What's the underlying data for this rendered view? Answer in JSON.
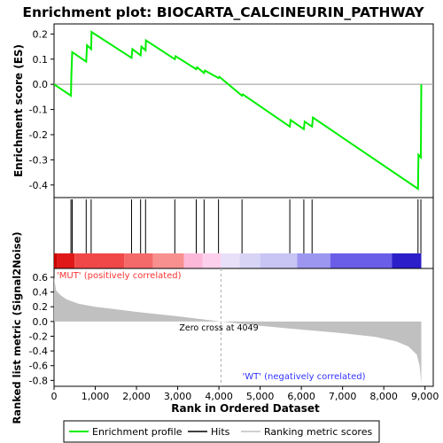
{
  "chart_data": {
    "type": "line",
    "title": "Enrichment plot: BIOCARTA_CALCINEURIN_PATHWAY",
    "xlabel": "Rank in Ordered Dataset",
    "xlim": [
      0,
      9200
    ],
    "x_ticks": [
      "0",
      "1,000",
      "2,000",
      "3,000",
      "4,000",
      "5,000",
      "6,000",
      "7,000",
      "8,000",
      "9,000"
    ],
    "x_tick_values": [
      0,
      1000,
      2000,
      3000,
      4000,
      5000,
      6000,
      7000,
      8000,
      9000
    ],
    "enrichment": {
      "ylabel": "Enrichment score (ES)",
      "ylim": [
        -0.45,
        0.24
      ],
      "y_ticks": [
        "0.2",
        "0.1",
        "0.0",
        "-0.1",
        "-0.2",
        "-0.3",
        "-0.4"
      ],
      "y_tick_values": [
        0.2,
        0.1,
        0.0,
        -0.1,
        -0.2,
        -0.3,
        -0.4
      ],
      "series_color": "#00ee00",
      "x": [
        0,
        410,
        420,
        440,
        780,
        800,
        900,
        910,
        1880,
        1900,
        2100,
        2120,
        2220,
        2230,
        2930,
        2950,
        3450,
        3470,
        3640,
        3660,
        3990,
        4010,
        4560,
        4580,
        5720,
        5740,
        6060,
        6080,
        6260,
        6280,
        8830,
        8840,
        8900,
        8910
      ],
      "y": [
        0.0,
        -0.045,
        0.03,
        0.128,
        0.09,
        0.155,
        0.14,
        0.208,
        0.105,
        0.14,
        0.115,
        0.15,
        0.135,
        0.175,
        0.1,
        0.112,
        0.06,
        0.068,
        0.045,
        0.055,
        0.025,
        0.03,
        -0.045,
        -0.04,
        -0.168,
        -0.142,
        -0.178,
        -0.148,
        -0.168,
        -0.132,
        -0.415,
        -0.28,
        -0.29,
        0.0
      ]
    },
    "hits": [
      410,
      440,
      780,
      900,
      1880,
      2100,
      2220,
      2930,
      3450,
      3640,
      3990,
      4560,
      5720,
      6060,
      6260,
      8830,
      8900
    ],
    "ranked_metric": {
      "ylabel": "Ranked list metric (Signal2Noise)",
      "ylim": [
        -0.88,
        0.72
      ],
      "y_ticks": [
        "0.6",
        "0.4",
        "0.2",
        "0.0",
        "-0.2",
        "-0.4",
        "-0.6",
        "-0.8"
      ],
      "y_tick_values": [
        0.6,
        0.4,
        0.2,
        0.0,
        -0.2,
        -0.4,
        -0.6,
        -0.8
      ],
      "x": [
        0,
        50,
        150,
        300,
        600,
        1000,
        2000,
        3000,
        4049,
        5000,
        6000,
        7000,
        7800,
        8300,
        8600,
        8800,
        8870,
        8910
      ],
      "y": [
        0.6,
        0.42,
        0.36,
        0.3,
        0.24,
        0.2,
        0.13,
        0.07,
        0.0,
        -0.06,
        -0.11,
        -0.16,
        -0.21,
        -0.27,
        -0.34,
        -0.45,
        -0.6,
        -0.84
      ],
      "zero_cross_rank": 4049,
      "zero_cross_label": "Zero cross at 4049",
      "pos_label": "'MUT' (positively correlated)",
      "neg_label": "'WT' (negatively correlated)"
    },
    "color_bar": {
      "segments": [
        {
          "from": 0,
          "to": 80,
          "color": "#cc0000"
        },
        {
          "from": 80,
          "to": 500,
          "color": "#e01818"
        },
        {
          "from": 500,
          "to": 1700,
          "color": "#f04848"
        },
        {
          "from": 1700,
          "to": 2400,
          "color": "#f46a6a"
        },
        {
          "from": 2400,
          "to": 3150,
          "color": "#f89090"
        },
        {
          "from": 3150,
          "to": 3600,
          "color": "#fbb8d8"
        },
        {
          "from": 3600,
          "to": 4049,
          "color": "#fcd0ec"
        },
        {
          "from": 4049,
          "to": 4500,
          "color": "#e8e0f8"
        },
        {
          "from": 4500,
          "to": 5000,
          "color": "#d8d4f6"
        },
        {
          "from": 5000,
          "to": 5900,
          "color": "#c8c4f4"
        },
        {
          "from": 5900,
          "to": 6700,
          "color": "#9c96f0"
        },
        {
          "from": 6700,
          "to": 8200,
          "color": "#6a5ee8"
        },
        {
          "from": 8200,
          "to": 8910,
          "color": "#2c1ec8"
        }
      ]
    },
    "legend": {
      "placement": "bottom",
      "entries": [
        {
          "label": "Enrichment profile",
          "color": "#00ee00"
        },
        {
          "label": "Hits",
          "color": "#000000"
        },
        {
          "label": "Ranking metric scores",
          "color": "#c0c0c0"
        }
      ]
    }
  }
}
